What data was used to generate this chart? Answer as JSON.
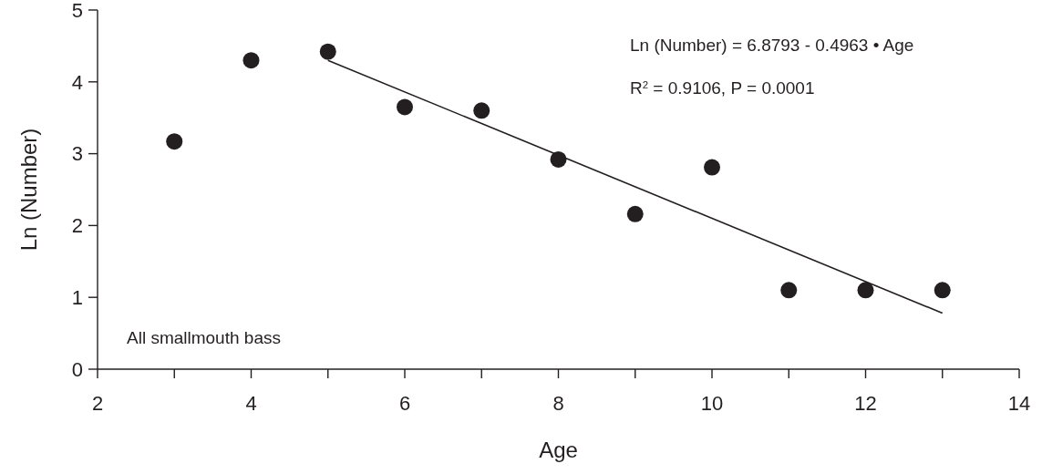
{
  "chart_data": {
    "type": "scatter",
    "xlabel": "Age",
    "ylabel": "Ln (Number)",
    "xlim": [
      2,
      14
    ],
    "ylim": [
      0,
      5
    ],
    "xticks": [
      2,
      {
        "value": 3,
        "label": null
      },
      4,
      {
        "value": 5,
        "label": null
      },
      6,
      {
        "value": 7,
        "label": null
      },
      8,
      {
        "value": 9,
        "label": null
      },
      10,
      {
        "value": 11,
        "label": null
      },
      12,
      {
        "value": 13,
        "label": null
      },
      14
    ],
    "yticks": [
      0,
      1,
      2,
      3,
      4,
      5
    ],
    "grid": false,
    "marker": "circle",
    "series": [
      {
        "color": "#231f20",
        "x": [
          3,
          4,
          5,
          6,
          7,
          8,
          9,
          10,
          11,
          12,
          13
        ],
        "values": [
          3.17,
          4.3,
          4.42,
          3.65,
          3.6,
          2.92,
          2.16,
          2.81,
          1.1,
          1.1,
          1.1
        ]
      },
      {
        "type": "line",
        "marker": "none",
        "color": "#231f20",
        "x": [
          5,
          13
        ],
        "values": [
          4.3,
          0.78
        ]
      }
    ],
    "annotations": [
      "Ln (Number) = 6.8793 - 0.4963 • Age",
      "R$^{2}$ = 0.9106, P = 0.0001",
      "All smallmouth bass"
    ]
  }
}
